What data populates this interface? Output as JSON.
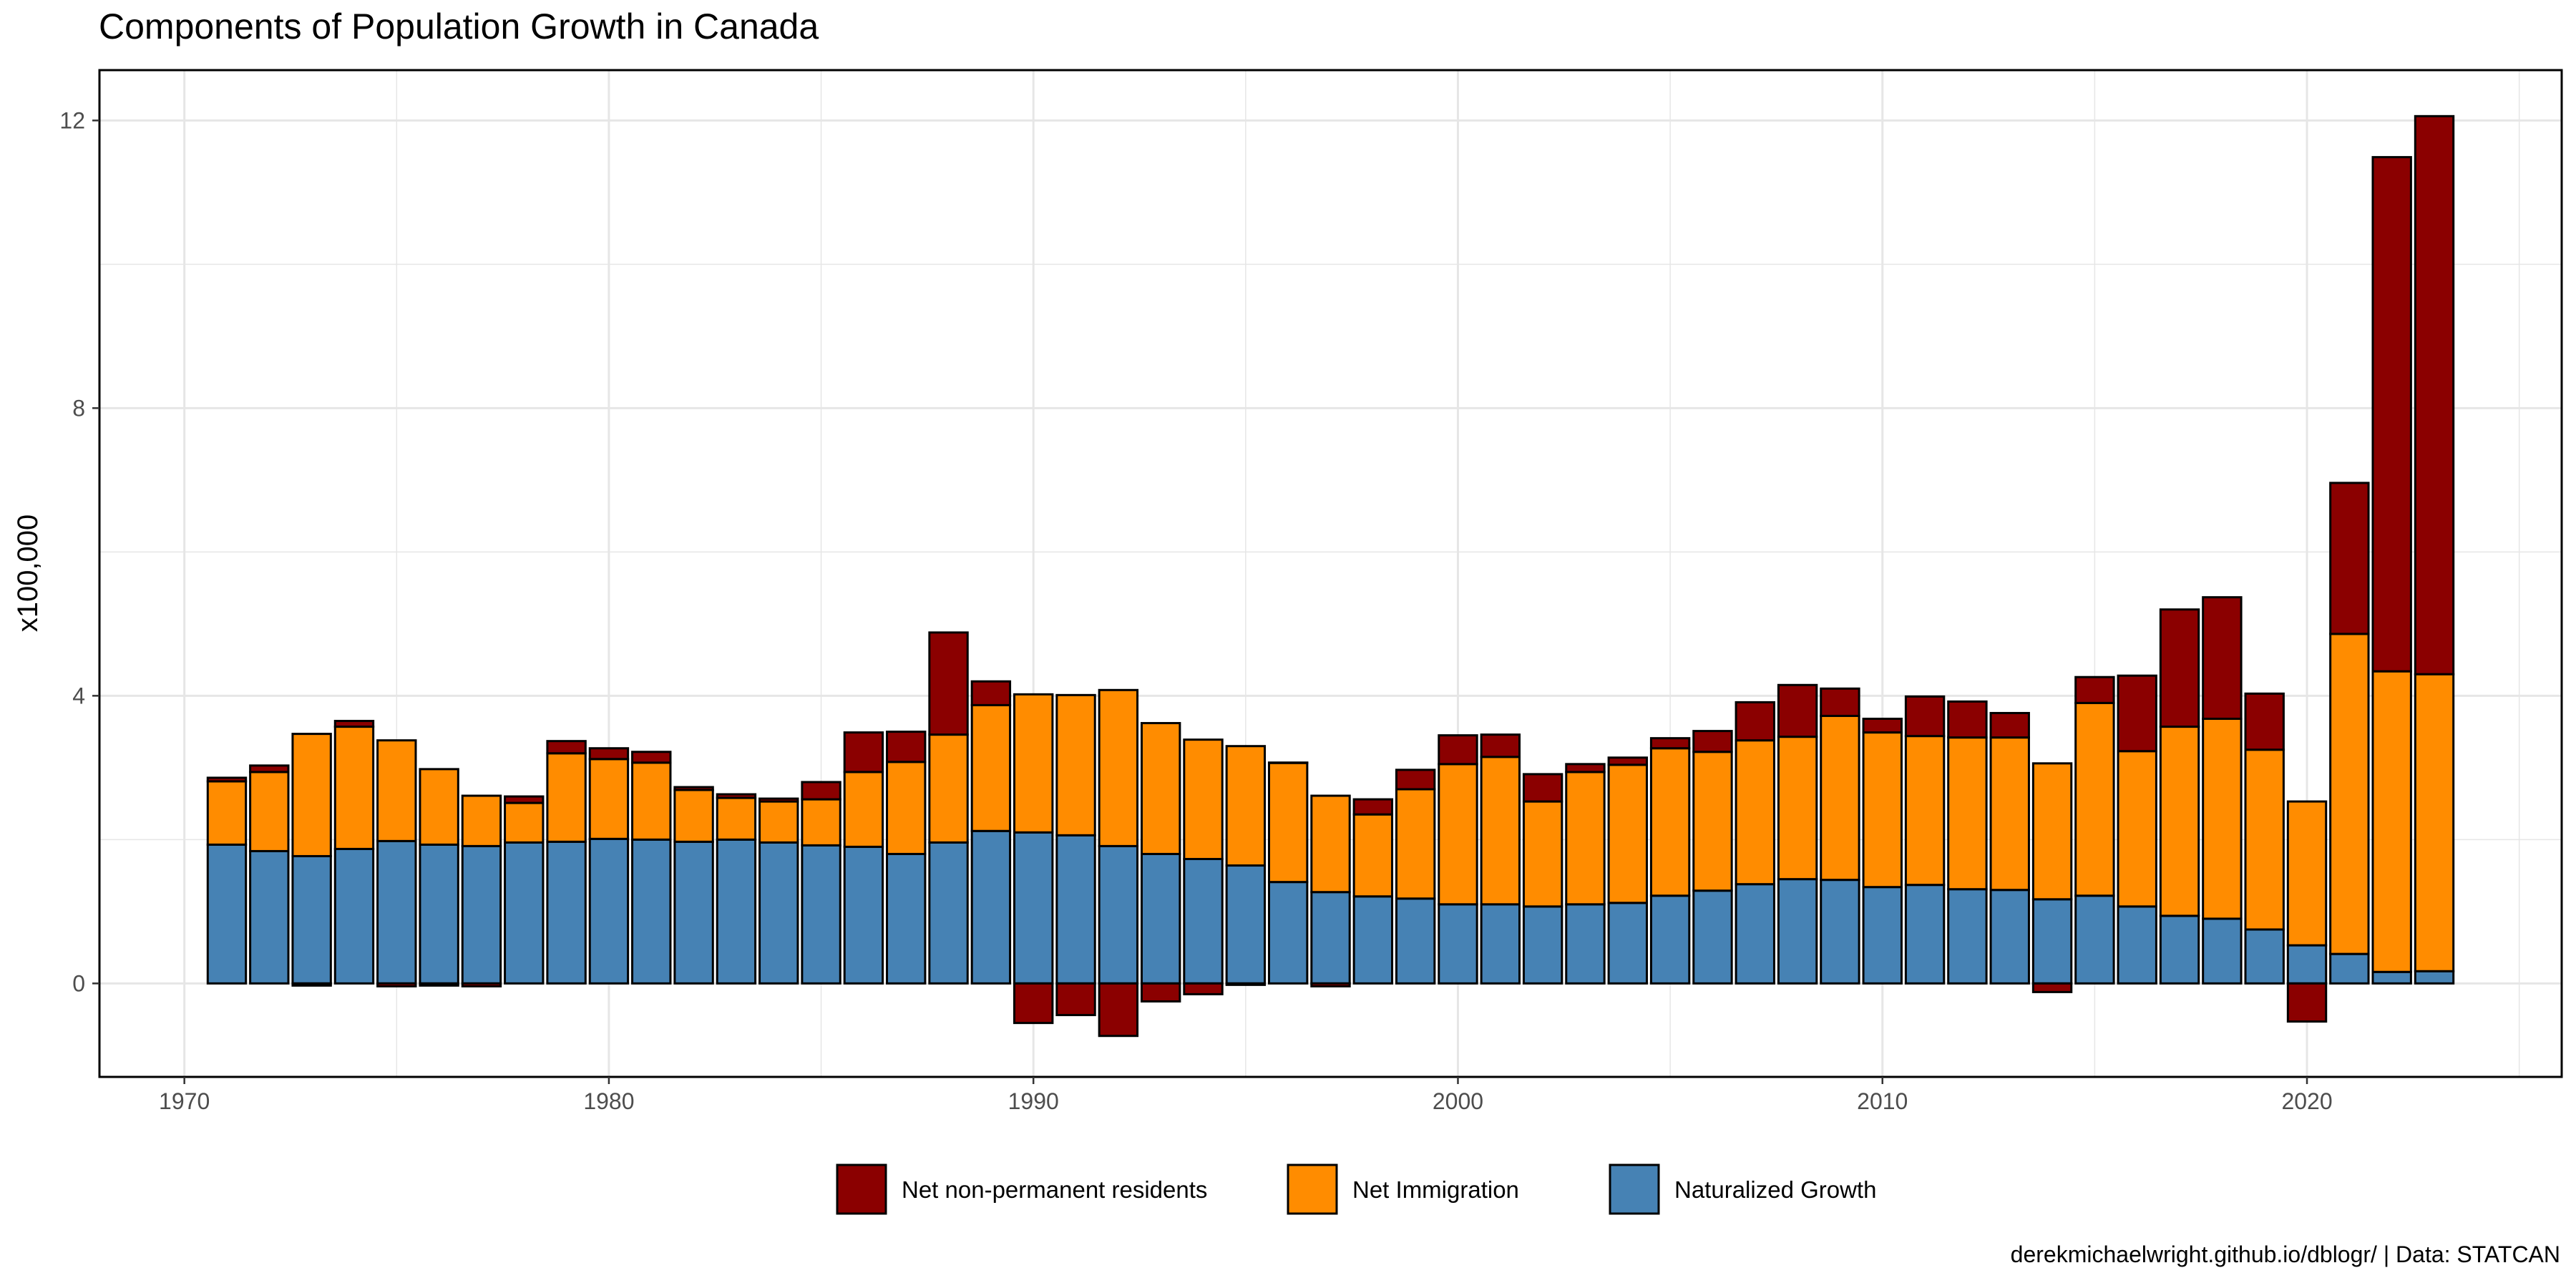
{
  "chart_data": {
    "type": "bar",
    "stacked": true,
    "title": "Components of Population Growth in Canada",
    "caption": "derekmichaelwright.github.io/dblogr/ | Data: STATCAN",
    "xlabel": "",
    "ylabel": "x100,000",
    "xlim": [
      1968,
      2026
    ],
    "ylim": [
      -1.3,
      12.7
    ],
    "x_ticks": [
      1970,
      1980,
      1990,
      2000,
      2010,
      2020
    ],
    "y_ticks": [
      0,
      4,
      8,
      12
    ],
    "grid": true,
    "legend_position": "bottom",
    "x": [
      1971,
      1972,
      1973,
      1974,
      1975,
      1976,
      1977,
      1978,
      1979,
      1980,
      1981,
      1982,
      1983,
      1984,
      1985,
      1986,
      1987,
      1988,
      1989,
      1990,
      1991,
      1992,
      1993,
      1994,
      1995,
      1996,
      1997,
      1998,
      1999,
      2000,
      2001,
      2002,
      2003,
      2004,
      2005,
      2006,
      2007,
      2008,
      2009,
      2010,
      2011,
      2012,
      2013,
      2014,
      2015,
      2016,
      2017,
      2018,
      2019,
      2020,
      2021,
      2022,
      2023
    ],
    "series": [
      {
        "name": "Naturalized Growth",
        "color": "#4682B4",
        "values": [
          1.93,
          1.84,
          1.77,
          1.87,
          1.98,
          1.93,
          1.91,
          1.96,
          1.97,
          2.01,
          2.0,
          1.97,
          2.0,
          1.96,
          1.92,
          1.9,
          1.8,
          1.96,
          2.12,
          2.1,
          2.06,
          1.91,
          1.8,
          1.73,
          1.64,
          1.41,
          1.27,
          1.21,
          1.18,
          1.1,
          1.1,
          1.07,
          1.1,
          1.12,
          1.22,
          1.29,
          1.38,
          1.45,
          1.44,
          1.34,
          1.37,
          1.31,
          1.3,
          1.17,
          1.22,
          1.07,
          0.94,
          0.9,
          0.75,
          0.53,
          0.41,
          0.16,
          0.17
        ]
      },
      {
        "name": "Net Immigration",
        "color": "#FF8C00",
        "values": [
          0.88,
          1.1,
          1.7,
          1.7,
          1.4,
          1.05,
          0.7,
          0.55,
          1.23,
          1.11,
          1.07,
          0.72,
          0.58,
          0.57,
          0.64,
          1.04,
          1.28,
          1.5,
          1.75,
          1.92,
          1.95,
          2.17,
          1.82,
          1.66,
          1.66,
          1.66,
          1.34,
          1.14,
          1.52,
          1.95,
          2.05,
          1.46,
          1.84,
          1.92,
          2.05,
          1.93,
          2.0,
          1.98,
          2.28,
          2.15,
          2.07,
          2.11,
          2.12,
          1.89,
          2.68,
          2.16,
          2.63,
          2.78,
          2.5,
          2.0,
          4.45,
          4.18,
          4.13
        ]
      },
      {
        "name": "Net non-permanent residents",
        "color": "#8B0000",
        "values": [
          0.05,
          0.09,
          -0.03,
          0.08,
          -0.04,
          -0.03,
          -0.04,
          0.09,
          0.17,
          0.15,
          0.15,
          0.04,
          0.05,
          0.04,
          0.24,
          0.55,
          0.42,
          1.42,
          0.33,
          -0.55,
          -0.44,
          -0.73,
          -0.25,
          -0.15,
          -0.02,
          0.0,
          -0.04,
          0.21,
          0.27,
          0.4,
          0.31,
          0.38,
          0.11,
          0.1,
          0.14,
          0.29,
          0.53,
          0.72,
          0.38,
          0.19,
          0.55,
          0.5,
          0.34,
          -0.12,
          0.36,
          1.05,
          1.63,
          1.69,
          0.78,
          -0.53,
          2.1,
          7.15,
          7.76
        ]
      }
    ],
    "legend_order": [
      "Net non-permanent residents",
      "Net Immigration",
      "Naturalized Growth"
    ]
  }
}
